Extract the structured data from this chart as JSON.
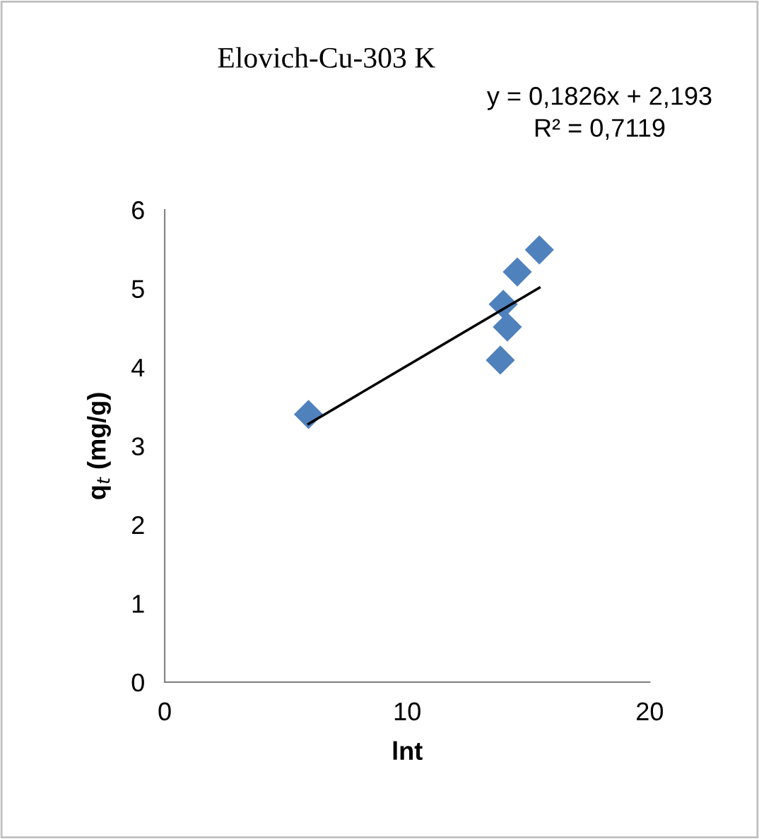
{
  "chart_data": {
    "type": "scatter",
    "title": "Elovich-Cu-303 K",
    "xlabel": "lnt",
    "ylabel": "q$_{t}$ (mg/g)",
    "annotations": [
      "y = 0,1826x + 2,193",
      "R² = 0,7119"
    ],
    "series": [
      {
        "color": "#4f81bd",
        "marker": "diamond",
        "x": [
          5.93,
          15.45,
          14.54,
          13.96,
          14.13,
          13.84
        ],
        "values": [
          3.4,
          5.49,
          5.21,
          4.8,
          4.51,
          4.09
        ]
      },
      {
        "type": "line",
        "color": "#000000",
        "marker": "none",
        "line_style": "solid",
        "x": [
          5.93,
          15.45
        ],
        "values": [
          3.28,
          5.01
        ]
      }
    ],
    "xlim": [
      0,
      20
    ],
    "xticks": [
      0,
      10,
      20
    ],
    "ylim": [
      0,
      6
    ],
    "yticks": [
      0,
      1,
      2,
      3,
      4,
      5,
      6
    ],
    "grid": false,
    "legend": false
  }
}
